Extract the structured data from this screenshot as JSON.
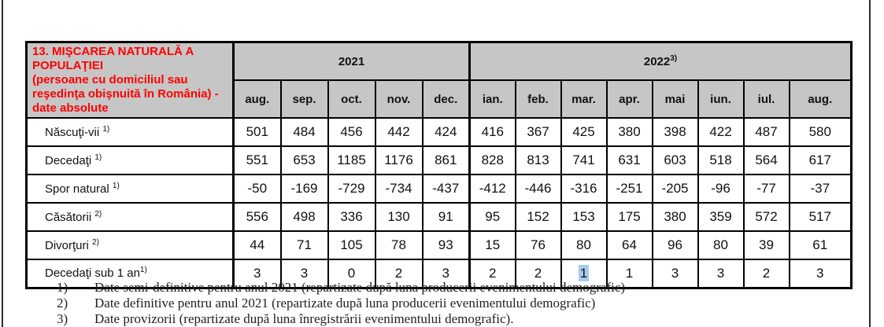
{
  "document": {
    "colors": {
      "header_bg": "#c6c6c6",
      "title_red": "#fe0000",
      "selection_blue": "#a9cbec",
      "border_black": "#000000"
    },
    "table": {
      "title_line1": "13. MIŞCAREA NATURALĂ A POPULAŢIEI",
      "title_line2": "(persoane cu domiciliul sau reşedinţa obişnuită în România) - date absolute",
      "year_groups": [
        {
          "label": "2021",
          "note": "",
          "colspan": 5
        },
        {
          "label": "2022",
          "note": "3)",
          "colspan": 8
        }
      ],
      "months": [
        "aug.",
        "sep.",
        "oct.",
        "nov.",
        "dec.",
        "ian.",
        "feb.",
        "mar.",
        "apr.",
        "mai",
        "iun.",
        "iul.",
        "aug."
      ],
      "rows": [
        {
          "label": "Născuţi-vii ",
          "note": "1)",
          "values": [
            501,
            484,
            456,
            442,
            424,
            416,
            367,
            425,
            380,
            398,
            422,
            487,
            580
          ]
        },
        {
          "label": "Decedaţi ",
          "note": "1)",
          "values": [
            551,
            653,
            1185,
            1176,
            861,
            828,
            813,
            741,
            631,
            603,
            518,
            564,
            617
          ]
        },
        {
          "label": "Spor natural ",
          "note": "1)",
          "values": [
            -50,
            -169,
            -729,
            -734,
            -437,
            -412,
            -446,
            -316,
            -251,
            -205,
            -96,
            -77,
            -37
          ]
        },
        {
          "label": "Căsătorii ",
          "note": "2)",
          "values": [
            556,
            498,
            336,
            130,
            91,
            95,
            152,
            153,
            175,
            380,
            359,
            572,
            517
          ]
        },
        {
          "label": "Divorţuri ",
          "note": "2)",
          "values": [
            44,
            71,
            105,
            78,
            93,
            15,
            76,
            80,
            64,
            96,
            80,
            39,
            61
          ]
        },
        {
          "label": "Decedaţi sub 1 an",
          "note": "1)",
          "values": [
            3,
            3,
            0,
            2,
            3,
            2,
            2,
            1,
            1,
            3,
            3,
            2,
            3
          ]
        }
      ],
      "highlight": {
        "row_index": 5,
        "col_index": 7
      }
    },
    "footnotes": [
      {
        "num": "1)",
        "text": "Date semi-definitive pentru anul 2021 (repartizate după luna producerii evenimentului demografic)"
      },
      {
        "num": "2)",
        "text": "Date definitive pentru anul 2021 (repartizate după luna producerii evenimentului demografic)"
      },
      {
        "num": "3)",
        "text": "Date provizorii (repartizate după luna înregistrării evenimentului demografic)."
      }
    ]
  }
}
